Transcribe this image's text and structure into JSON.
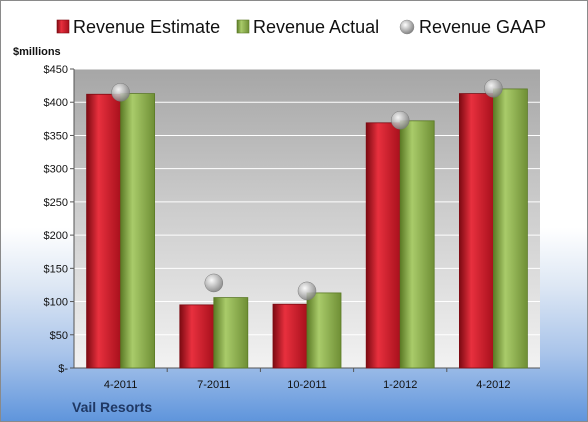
{
  "chart_data": {
    "type": "bar",
    "unit_label": "$millions",
    "company": "Vail Resorts",
    "categories": [
      "4-2011",
      "7-2011",
      "10-2011",
      "1-2012",
      "4-2012"
    ],
    "series": [
      {
        "name": "Revenue Estimate",
        "kind": "bar",
        "color": "#c8102e",
        "values": [
          412,
          95,
          96,
          369,
          413
        ]
      },
      {
        "name": "Revenue Actual",
        "kind": "bar",
        "color": "#8db050",
        "values": [
          413,
          106,
          113,
          372,
          420
        ]
      },
      {
        "name": "Revenue GAAP",
        "kind": "marker",
        "color": "#b4b4b4",
        "values": [
          415,
          128,
          116,
          373,
          421
        ]
      }
    ],
    "ylim": [
      0,
      450
    ],
    "yticks": [
      0,
      50,
      100,
      150,
      200,
      250,
      300,
      350,
      400,
      450
    ],
    "ytick_labels": [
      "$-",
      "$50",
      "$100",
      "$150",
      "$200",
      "$250",
      "$300",
      "$350",
      "$400",
      "$450"
    ],
    "grid": true,
    "legend_position": "top"
  }
}
